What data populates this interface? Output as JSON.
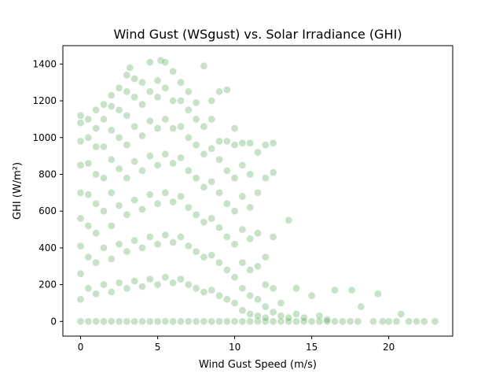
{
  "chart_data": {
    "type": "scatter",
    "title": "Wind Gust (WSgust) vs. Solar Irradiance (GHI)",
    "xlabel": "Wind Gust Speed (m/s)",
    "ylabel": "GHI (W/m²)",
    "xlim": [
      -1.15,
      24.15
    ],
    "ylim": [
      -80,
      1500
    ],
    "xticks": [
      0,
      5,
      10,
      15,
      20
    ],
    "xtick_labels": [
      "0",
      "5",
      "10",
      "15",
      "20"
    ],
    "yticks": [
      0,
      200,
      400,
      600,
      800,
      1000,
      1200,
      1400
    ],
    "ytick_labels": [
      "0",
      "200",
      "400",
      "600",
      "800",
      "1000",
      "1200",
      "1400"
    ],
    "grid": false,
    "legend": "none",
    "series_color": "#228b22",
    "marker_alpha": 0.25,
    "points": [
      {
        "x": 0,
        "y": 0
      },
      {
        "x": 0,
        "y": 120
      },
      {
        "x": 0,
        "y": 260
      },
      {
        "x": 0,
        "y": 410
      },
      {
        "x": 0,
        "y": 560
      },
      {
        "x": 0,
        "y": 700
      },
      {
        "x": 0,
        "y": 850
      },
      {
        "x": 0,
        "y": 980
      },
      {
        "x": 0,
        "y": 1080
      },
      {
        "x": 0,
        "y": 1120
      },
      {
        "x": 0.5,
        "y": 0
      },
      {
        "x": 0.5,
        "y": 180
      },
      {
        "x": 0.5,
        "y": 350
      },
      {
        "x": 0.5,
        "y": 520
      },
      {
        "x": 0.5,
        "y": 690
      },
      {
        "x": 0.5,
        "y": 860
      },
      {
        "x": 0.5,
        "y": 1000
      },
      {
        "x": 0.5,
        "y": 1100
      },
      {
        "x": 1,
        "y": 0
      },
      {
        "x": 1,
        "y": 150
      },
      {
        "x": 1,
        "y": 320
      },
      {
        "x": 1,
        "y": 480
      },
      {
        "x": 1,
        "y": 640
      },
      {
        "x": 1,
        "y": 800
      },
      {
        "x": 1,
        "y": 950
      },
      {
        "x": 1,
        "y": 1050
      },
      {
        "x": 1,
        "y": 1150
      },
      {
        "x": 1.5,
        "y": 0
      },
      {
        "x": 1.5,
        "y": 200
      },
      {
        "x": 1.5,
        "y": 400
      },
      {
        "x": 1.5,
        "y": 600
      },
      {
        "x": 1.5,
        "y": 780
      },
      {
        "x": 1.5,
        "y": 950
      },
      {
        "x": 1.5,
        "y": 1100
      },
      {
        "x": 1.5,
        "y": 1180
      },
      {
        "x": 2,
        "y": 0
      },
      {
        "x": 2,
        "y": 160
      },
      {
        "x": 2,
        "y": 340
      },
      {
        "x": 2,
        "y": 520
      },
      {
        "x": 2,
        "y": 700
      },
      {
        "x": 2,
        "y": 880
      },
      {
        "x": 2,
        "y": 1040
      },
      {
        "x": 2,
        "y": 1170
      },
      {
        "x": 2,
        "y": 1230
      },
      {
        "x": 2.5,
        "y": 0
      },
      {
        "x": 2.5,
        "y": 210
      },
      {
        "x": 2.5,
        "y": 420
      },
      {
        "x": 2.5,
        "y": 630
      },
      {
        "x": 2.5,
        "y": 830
      },
      {
        "x": 2.5,
        "y": 1000
      },
      {
        "x": 2.5,
        "y": 1150
      },
      {
        "x": 2.5,
        "y": 1270
      },
      {
        "x": 3,
        "y": 0
      },
      {
        "x": 3,
        "y": 180
      },
      {
        "x": 3,
        "y": 380
      },
      {
        "x": 3,
        "y": 580
      },
      {
        "x": 3,
        "y": 780
      },
      {
        "x": 3,
        "y": 960
      },
      {
        "x": 3,
        "y": 1120
      },
      {
        "x": 3,
        "y": 1250
      },
      {
        "x": 3,
        "y": 1340
      },
      {
        "x": 3.2,
        "y": 1380
      },
      {
        "x": 3.5,
        "y": 0
      },
      {
        "x": 3.5,
        "y": 220
      },
      {
        "x": 3.5,
        "y": 440
      },
      {
        "x": 3.5,
        "y": 660
      },
      {
        "x": 3.5,
        "y": 870
      },
      {
        "x": 3.5,
        "y": 1060
      },
      {
        "x": 3.5,
        "y": 1220
      },
      {
        "x": 3.5,
        "y": 1320
      },
      {
        "x": 4,
        "y": 0
      },
      {
        "x": 4,
        "y": 190
      },
      {
        "x": 4,
        "y": 400
      },
      {
        "x": 4,
        "y": 610
      },
      {
        "x": 4,
        "y": 820
      },
      {
        "x": 4,
        "y": 1010
      },
      {
        "x": 4,
        "y": 1180
      },
      {
        "x": 4,
        "y": 1300
      },
      {
        "x": 4.5,
        "y": 0
      },
      {
        "x": 4.5,
        "y": 230
      },
      {
        "x": 4.5,
        "y": 460
      },
      {
        "x": 4.5,
        "y": 690
      },
      {
        "x": 4.5,
        "y": 900
      },
      {
        "x": 4.5,
        "y": 1090
      },
      {
        "x": 4.5,
        "y": 1250
      },
      {
        "x": 4.5,
        "y": 1410
      },
      {
        "x": 5,
        "y": 0
      },
      {
        "x": 5,
        "y": 200
      },
      {
        "x": 5,
        "y": 420
      },
      {
        "x": 5,
        "y": 640
      },
      {
        "x": 5,
        "y": 850
      },
      {
        "x": 5,
        "y": 1050
      },
      {
        "x": 5,
        "y": 1220
      },
      {
        "x": 5,
        "y": 1310
      },
      {
        "x": 5.2,
        "y": 1420
      },
      {
        "x": 5.5,
        "y": 0
      },
      {
        "x": 5.5,
        "y": 240
      },
      {
        "x": 5.5,
        "y": 470
      },
      {
        "x": 5.5,
        "y": 700
      },
      {
        "x": 5.5,
        "y": 910
      },
      {
        "x": 5.5,
        "y": 1100
      },
      {
        "x": 5.5,
        "y": 1270
      },
      {
        "x": 5.5,
        "y": 1410
      },
      {
        "x": 6,
        "y": 0
      },
      {
        "x": 6,
        "y": 210
      },
      {
        "x": 6,
        "y": 430
      },
      {
        "x": 6,
        "y": 650
      },
      {
        "x": 6,
        "y": 860
      },
      {
        "x": 6,
        "y": 1050
      },
      {
        "x": 6,
        "y": 1200
      },
      {
        "x": 6,
        "y": 1360
      },
      {
        "x": 6.5,
        "y": 0
      },
      {
        "x": 6.5,
        "y": 230
      },
      {
        "x": 6.5,
        "y": 460
      },
      {
        "x": 6.5,
        "y": 680
      },
      {
        "x": 6.5,
        "y": 890
      },
      {
        "x": 6.5,
        "y": 1060
      },
      {
        "x": 6.5,
        "y": 1200
      },
      {
        "x": 6.5,
        "y": 1300
      },
      {
        "x": 7,
        "y": 0
      },
      {
        "x": 7,
        "y": 200
      },
      {
        "x": 7,
        "y": 410
      },
      {
        "x": 7,
        "y": 620
      },
      {
        "x": 7,
        "y": 820
      },
      {
        "x": 7,
        "y": 1000
      },
      {
        "x": 7,
        "y": 1150
      },
      {
        "x": 7,
        "y": 1250
      },
      {
        "x": 7.5,
        "y": 0
      },
      {
        "x": 7.5,
        "y": 180
      },
      {
        "x": 7.5,
        "y": 380
      },
      {
        "x": 7.5,
        "y": 580
      },
      {
        "x": 7.5,
        "y": 780
      },
      {
        "x": 7.5,
        "y": 960
      },
      {
        "x": 7.5,
        "y": 1100
      },
      {
        "x": 7.5,
        "y": 1190
      },
      {
        "x": 8,
        "y": 0
      },
      {
        "x": 8,
        "y": 160
      },
      {
        "x": 8,
        "y": 350
      },
      {
        "x": 8,
        "y": 540
      },
      {
        "x": 8,
        "y": 730
      },
      {
        "x": 8,
        "y": 910
      },
      {
        "x": 8,
        "y": 1060
      },
      {
        "x": 8,
        "y": 1390
      },
      {
        "x": 8.5,
        "y": 0
      },
      {
        "x": 8.5,
        "y": 170
      },
      {
        "x": 8.5,
        "y": 360
      },
      {
        "x": 8.5,
        "y": 560
      },
      {
        "x": 8.5,
        "y": 760
      },
      {
        "x": 8.5,
        "y": 940
      },
      {
        "x": 8.5,
        "y": 1100
      },
      {
        "x": 8.5,
        "y": 1200
      },
      {
        "x": 9,
        "y": 0
      },
      {
        "x": 9,
        "y": 140
      },
      {
        "x": 9,
        "y": 320
      },
      {
        "x": 9,
        "y": 510
      },
      {
        "x": 9,
        "y": 700
      },
      {
        "x": 9,
        "y": 880
      },
      {
        "x": 9,
        "y": 980
      },
      {
        "x": 9,
        "y": 1250
      },
      {
        "x": 9.5,
        "y": 0
      },
      {
        "x": 9.5,
        "y": 120
      },
      {
        "x": 9.5,
        "y": 280
      },
      {
        "x": 9.5,
        "y": 460
      },
      {
        "x": 9.5,
        "y": 640
      },
      {
        "x": 9.5,
        "y": 820
      },
      {
        "x": 9.5,
        "y": 980
      },
      {
        "x": 9.5,
        "y": 1260
      },
      {
        "x": 10,
        "y": 0
      },
      {
        "x": 10,
        "y": 100
      },
      {
        "x": 10,
        "y": 240
      },
      {
        "x": 10,
        "y": 420
      },
      {
        "x": 10,
        "y": 600
      },
      {
        "x": 10,
        "y": 780
      },
      {
        "x": 10,
        "y": 960
      },
      {
        "x": 10,
        "y": 1050
      },
      {
        "x": 10.5,
        "y": 0
      },
      {
        "x": 10.5,
        "y": 60
      },
      {
        "x": 10.5,
        "y": 180
      },
      {
        "x": 10.5,
        "y": 320
      },
      {
        "x": 10.5,
        "y": 500
      },
      {
        "x": 10.5,
        "y": 680
      },
      {
        "x": 10.5,
        "y": 850
      },
      {
        "x": 10.5,
        "y": 970
      },
      {
        "x": 11,
        "y": 0
      },
      {
        "x": 11,
        "y": 40
      },
      {
        "x": 11,
        "y": 140
      },
      {
        "x": 11,
        "y": 280
      },
      {
        "x": 11,
        "y": 450
      },
      {
        "x": 11,
        "y": 620
      },
      {
        "x": 11,
        "y": 800
      },
      {
        "x": 11,
        "y": 970
      },
      {
        "x": 11.5,
        "y": 0
      },
      {
        "x": 11.5,
        "y": 30
      },
      {
        "x": 11.5,
        "y": 120
      },
      {
        "x": 11.5,
        "y": 300
      },
      {
        "x": 11.5,
        "y": 480
      },
      {
        "x": 11.5,
        "y": 700
      },
      {
        "x": 11.5,
        "y": 920
      },
      {
        "x": 12,
        "y": 0
      },
      {
        "x": 12,
        "y": 20
      },
      {
        "x": 12,
        "y": 80
      },
      {
        "x": 12,
        "y": 200
      },
      {
        "x": 12,
        "y": 350
      },
      {
        "x": 12,
        "y": 780
      },
      {
        "x": 12,
        "y": 960
      },
      {
        "x": 12.5,
        "y": 0
      },
      {
        "x": 12.5,
        "y": 50
      },
      {
        "x": 12.5,
        "y": 180
      },
      {
        "x": 12.5,
        "y": 460
      },
      {
        "x": 12.5,
        "y": 810
      },
      {
        "x": 12.5,
        "y": 970
      },
      {
        "x": 13,
        "y": 0
      },
      {
        "x": 13,
        "y": 30
      },
      {
        "x": 13,
        "y": 100
      },
      {
        "x": 13.5,
        "y": 0
      },
      {
        "x": 13.5,
        "y": 20
      },
      {
        "x": 13.5,
        "y": 550
      },
      {
        "x": 14,
        "y": 0
      },
      {
        "x": 14,
        "y": 40
      },
      {
        "x": 14,
        "y": 180
      },
      {
        "x": 14.5,
        "y": 0
      },
      {
        "x": 14.5,
        "y": 20
      },
      {
        "x": 15,
        "y": 0
      },
      {
        "x": 15,
        "y": 140
      },
      {
        "x": 15.5,
        "y": 0
      },
      {
        "x": 15.5,
        "y": 30
      },
      {
        "x": 16,
        "y": 0
      },
      {
        "x": 16,
        "y": 10
      },
      {
        "x": 16.5,
        "y": 0
      },
      {
        "x": 16.5,
        "y": 170
      },
      {
        "x": 17,
        "y": 0
      },
      {
        "x": 17.5,
        "y": 0
      },
      {
        "x": 17.6,
        "y": 170
      },
      {
        "x": 18,
        "y": 0
      },
      {
        "x": 18.2,
        "y": 80
      },
      {
        "x": 19,
        "y": 0
      },
      {
        "x": 19.3,
        "y": 150
      },
      {
        "x": 19.6,
        "y": 0
      },
      {
        "x": 20,
        "y": 0
      },
      {
        "x": 20.5,
        "y": 0
      },
      {
        "x": 20.8,
        "y": 40
      },
      {
        "x": 21.3,
        "y": 0
      },
      {
        "x": 21.8,
        "y": 0
      },
      {
        "x": 22.3,
        "y": 0
      },
      {
        "x": 23,
        "y": 0
      }
    ]
  }
}
